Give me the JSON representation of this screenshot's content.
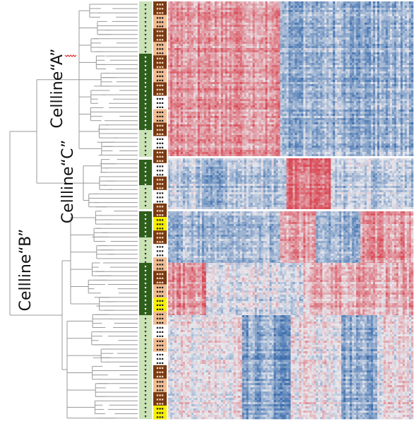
{
  "labels": {
    "cellline_a": "Cellline“A”",
    "cellline_c": "Cellline“C”",
    "cellline_b": "Cellline“B”"
  },
  "colors": {
    "high": "#d94a56",
    "mid": "#e9e9ee",
    "low": "#3d6fae",
    "dendrogram": "#9a9a9a",
    "annot_lightgreen": "#c9e2b6",
    "annot_darkgreen": "#2f5f1c",
    "annot_peach": "#f2bd92",
    "annot_brown": "#7a3a12",
    "annot_white": "#ffffff",
    "annot_yellow": "#f6f000",
    "spellcheck_underline": "#e03030"
  },
  "annotation_col1": [
    "lightgreen",
    "darkgreen"
  ],
  "annotation_col2": [
    "brown",
    "peach",
    "brown",
    "peach",
    "brown",
    "peach",
    "brown",
    "white",
    "peach",
    "brown",
    "white",
    "brown",
    "white",
    "brown",
    "white",
    "brown",
    "yellow",
    "brown",
    "white",
    "peach",
    "brown",
    "peach",
    "yellow",
    "peach",
    "white",
    "peach",
    "white",
    "brown",
    "peach",
    "brown",
    "yellow"
  ],
  "clusters": [
    "A",
    "C",
    "B"
  ]
}
